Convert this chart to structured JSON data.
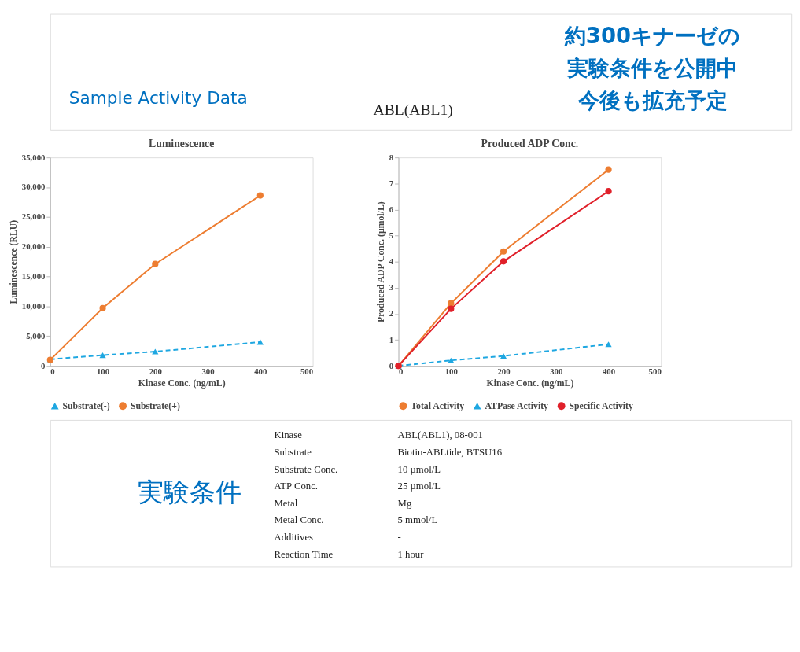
{
  "chart_data": [
    {
      "type": "other",
      "annotations": [
        "Sample Activity Data",
        "ABL(ABL1)",
        "約300キナーゼの",
        "実験条件を公開中",
        "今後も拡充予定"
      ]
    },
    {
      "type": "line",
      "title": "Luminescence",
      "xlabel": "Kinase Conc. (ng/mL)",
      "ylabel": "Luminescence (RLU)",
      "x": [
        0,
        100,
        200,
        400
      ],
      "xlim": [
        0,
        500
      ],
      "xticks": [
        0,
        100,
        200,
        300,
        400,
        500
      ],
      "ylim": [
        0,
        35000
      ],
      "yticks": [
        {
          "value": 0,
          "label": "0"
        },
        {
          "value": 5000,
          "label": "5,000"
        },
        {
          "value": 10000,
          "label": "10,000"
        },
        {
          "value": 15000,
          "label": "15,000"
        },
        {
          "value": 20000,
          "label": "20,000"
        },
        {
          "value": 25000,
          "label": "25,000"
        },
        {
          "value": 30000,
          "label": "30,000"
        },
        {
          "value": 35000,
          "label": "35,000"
        }
      ],
      "grid": false,
      "legend": "bottom",
      "series": [
        {
          "name": "Substrate(-)",
          "color": "#1ea7e1",
          "marker": "triangle",
          "line_style": "dashed",
          "values": [
            1100,
            1800,
            2400,
            4000
          ]
        },
        {
          "name": "Substrate(+)",
          "color": "#ed7d31",
          "marker": "circle",
          "line_style": "solid",
          "values": [
            1000,
            9700,
            17100,
            28600
          ]
        }
      ]
    },
    {
      "type": "line",
      "title": "Produced ADP Conc.",
      "xlabel": "Kinase Conc. (ng/mL)",
      "ylabel": "Produced ADP Conc. (µmol/L)",
      "x": [
        0,
        100,
        200,
        400
      ],
      "xlim": [
        0,
        500
      ],
      "xticks": [
        0,
        100,
        200,
        300,
        400,
        500
      ],
      "ylim": [
        0,
        8
      ],
      "yticks": [
        0,
        1,
        2,
        3,
        4,
        5,
        6,
        7,
        8
      ],
      "grid": false,
      "legend": "bottom",
      "series": [
        {
          "name": "Total Activity",
          "color": "#ed7d31",
          "marker": "circle",
          "line_style": "solid",
          "values": [
            0,
            2.4,
            4.39,
            7.53
          ]
        },
        {
          "name": "ATPase Activity",
          "color": "#1ea7e1",
          "marker": "triangle",
          "line_style": "dashed",
          "values": [
            0,
            0.21,
            0.38,
            0.83
          ]
        },
        {
          "name": "Specific Activity",
          "color": "#e0202a",
          "marker": "circle",
          "line_style": "solid",
          "values": [
            0,
            2.19,
            4.01,
            6.7
          ]
        }
      ]
    },
    {
      "type": "other",
      "annotations": [
        "実験条件",
        "Kinase",
        "ABL(ABL1), 08-001",
        "Substrate",
        "Biotin-ABLtide, BTSU16",
        "Substrate Conc.",
        "10 µmol/L",
        "ATP Conc.",
        "25 µmol/L",
        "Metal",
        "Mg",
        "Metal Conc.",
        "5 mmol/L",
        "Additives",
        "-",
        "Reaction Time",
        "1 hour"
      ]
    }
  ]
}
